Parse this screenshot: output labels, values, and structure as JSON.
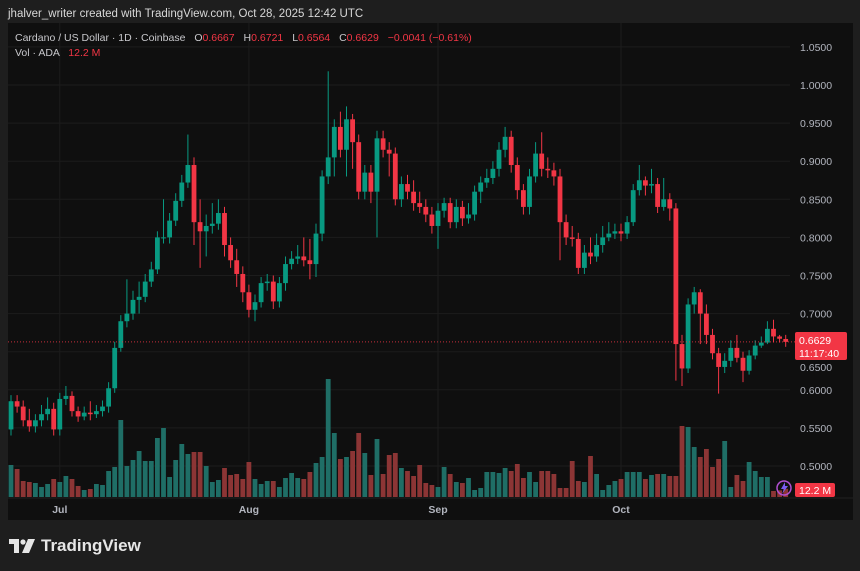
{
  "credit": "jhalver_writer created with TradingView.com, Oct 28, 2025 12:42 UTC",
  "legend": {
    "symbol": "Cardano / US Dollar · 1D · Coinbase",
    "o_label": "O",
    "o": "0.6667",
    "h_label": "H",
    "h": "0.6721",
    "l_label": "L",
    "l": "0.6564",
    "c_label": "C",
    "c": "0.6629",
    "change": "−0.0041 (−0.61%)",
    "vol_label": "Vol · ADA",
    "vol": "12.2 M"
  },
  "price_label": {
    "price": "0.6629",
    "countdown": "11:17:40"
  },
  "volume_label": "12.2 M",
  "footer": {
    "brand": "TradingView"
  },
  "colors": {
    "up": "#089981",
    "down": "#f23645",
    "vol_up": "#1f6e66",
    "vol_down": "#8c3535",
    "background": "#0f0f0f"
  },
  "chart_data": {
    "type": "candlestick",
    "symbol": "ADA/USD",
    "interval": "1D",
    "start_date": "2025-06-23",
    "x_tick_labels": [
      {
        "label": "Jul",
        "date": "2025-07-01"
      },
      {
        "label": "Aug",
        "date": "2025-08-01"
      },
      {
        "label": "Sep",
        "date": "2025-09-01"
      },
      {
        "label": "Oct",
        "date": "2025-10-01"
      }
    ],
    "y_ticks": [
      "1.0500",
      "1.0000",
      "0.9500",
      "0.9000",
      "0.8500",
      "0.8000",
      "0.7500",
      "0.7000",
      "0.6500",
      "0.6000",
      "0.5500",
      "0.5000"
    ],
    "ylim": [
      0.47,
      1.07
    ],
    "grid": true,
    "last_price_line": 0.6629,
    "candles_ohlc": [
      [
        0.548,
        0.593,
        0.54,
        0.585
      ],
      [
        0.585,
        0.593,
        0.57,
        0.578
      ],
      [
        0.578,
        0.586,
        0.552,
        0.56
      ],
      [
        0.56,
        0.575,
        0.545,
        0.552
      ],
      [
        0.552,
        0.568,
        0.544,
        0.56
      ],
      [
        0.56,
        0.58,
        0.552,
        0.568
      ],
      [
        0.568,
        0.59,
        0.56,
        0.575
      ],
      [
        0.575,
        0.583,
        0.54,
        0.548
      ],
      [
        0.548,
        0.596,
        0.54,
        0.588
      ],
      [
        0.588,
        0.605,
        0.58,
        0.592
      ],
      [
        0.592,
        0.598,
        0.565,
        0.572
      ],
      [
        0.572,
        0.578,
        0.558,
        0.565
      ],
      [
        0.565,
        0.578,
        0.56,
        0.57
      ],
      [
        0.57,
        0.585,
        0.56,
        0.568
      ],
      [
        0.568,
        0.58,
        0.563,
        0.572
      ],
      [
        0.572,
        0.586,
        0.565,
        0.578
      ],
      [
        0.578,
        0.61,
        0.57,
        0.602
      ],
      [
        0.602,
        0.663,
        0.596,
        0.655
      ],
      [
        0.655,
        0.698,
        0.65,
        0.69
      ],
      [
        0.69,
        0.745,
        0.682,
        0.7
      ],
      [
        0.7,
        0.73,
        0.692,
        0.718
      ],
      [
        0.718,
        0.742,
        0.7,
        0.722
      ],
      [
        0.722,
        0.752,
        0.715,
        0.742
      ],
      [
        0.742,
        0.768,
        0.735,
        0.758
      ],
      [
        0.758,
        0.808,
        0.752,
        0.8
      ],
      [
        0.8,
        0.85,
        0.792,
        0.8
      ],
      [
        0.8,
        0.832,
        0.792,
        0.822
      ],
      [
        0.822,
        0.858,
        0.815,
        0.848
      ],
      [
        0.848,
        0.882,
        0.84,
        0.872
      ],
      [
        0.872,
        0.935,
        0.865,
        0.895
      ],
      [
        0.895,
        0.905,
        0.79,
        0.82
      ],
      [
        0.82,
        0.85,
        0.76,
        0.808
      ],
      [
        0.808,
        0.83,
        0.775,
        0.815
      ],
      [
        0.815,
        0.845,
        0.805,
        0.818
      ],
      [
        0.818,
        0.85,
        0.81,
        0.832
      ],
      [
        0.832,
        0.84,
        0.775,
        0.79
      ],
      [
        0.79,
        0.8,
        0.76,
        0.77
      ],
      [
        0.77,
        0.785,
        0.735,
        0.752
      ],
      [
        0.752,
        0.762,
        0.715,
        0.728
      ],
      [
        0.728,
        0.738,
        0.695,
        0.705
      ],
      [
        0.705,
        0.725,
        0.69,
        0.715
      ],
      [
        0.715,
        0.748,
        0.708,
        0.74
      ],
      [
        0.74,
        0.752,
        0.73,
        0.742
      ],
      [
        0.742,
        0.75,
        0.706,
        0.716
      ],
      [
        0.716,
        0.748,
        0.708,
        0.74
      ],
      [
        0.74,
        0.775,
        0.73,
        0.765
      ],
      [
        0.765,
        0.782,
        0.758,
        0.772
      ],
      [
        0.772,
        0.79,
        0.765,
        0.775
      ],
      [
        0.775,
        0.8,
        0.762,
        0.77
      ],
      [
        0.77,
        0.798,
        0.745,
        0.765
      ],
      [
        0.765,
        0.818,
        0.748,
        0.805
      ],
      [
        0.805,
        0.888,
        0.795,
        0.88
      ],
      [
        0.88,
        1.018,
        0.87,
        0.905
      ],
      [
        0.905,
        0.955,
        0.88,
        0.945
      ],
      [
        0.945,
        0.965,
        0.905,
        0.915
      ],
      [
        0.915,
        0.972,
        0.88,
        0.955
      ],
      [
        0.955,
        0.962,
        0.89,
        0.925
      ],
      [
        0.925,
        0.935,
        0.85,
        0.86
      ],
      [
        0.86,
        0.895,
        0.85,
        0.885
      ],
      [
        0.885,
        0.895,
        0.845,
        0.86
      ],
      [
        0.86,
        0.94,
        0.8,
        0.93
      ],
      [
        0.93,
        0.94,
        0.905,
        0.915
      ],
      [
        0.915,
        0.925,
        0.88,
        0.91
      ],
      [
        0.91,
        0.918,
        0.842,
        0.85
      ],
      [
        0.85,
        0.88,
        0.84,
        0.87
      ],
      [
        0.87,
        0.882,
        0.85,
        0.86
      ],
      [
        0.86,
        0.875,
        0.835,
        0.845
      ],
      [
        0.845,
        0.86,
        0.832,
        0.84
      ],
      [
        0.84,
        0.85,
        0.82,
        0.83
      ],
      [
        0.83,
        0.84,
        0.805,
        0.815
      ],
      [
        0.815,
        0.845,
        0.785,
        0.835
      ],
      [
        0.835,
        0.852,
        0.826,
        0.845
      ],
      [
        0.845,
        0.852,
        0.812,
        0.82
      ],
      [
        0.82,
        0.85,
        0.812,
        0.84
      ],
      [
        0.84,
        0.848,
        0.815,
        0.825
      ],
      [
        0.825,
        0.845,
        0.818,
        0.83
      ],
      [
        0.83,
        0.868,
        0.822,
        0.86
      ],
      [
        0.86,
        0.88,
        0.845,
        0.872
      ],
      [
        0.872,
        0.89,
        0.865,
        0.878
      ],
      [
        0.878,
        0.9,
        0.87,
        0.89
      ],
      [
        0.89,
        0.925,
        0.88,
        0.915
      ],
      [
        0.915,
        0.945,
        0.905,
        0.932
      ],
      [
        0.932,
        0.94,
        0.885,
        0.895
      ],
      [
        0.895,
        0.905,
        0.85,
        0.862
      ],
      [
        0.862,
        0.87,
        0.83,
        0.84
      ],
      [
        0.84,
        0.89,
        0.83,
        0.88
      ],
      [
        0.88,
        0.925,
        0.872,
        0.91
      ],
      [
        0.91,
        0.938,
        0.88,
        0.89
      ],
      [
        0.89,
        0.905,
        0.878,
        0.888
      ],
      [
        0.888,
        0.898,
        0.868,
        0.88
      ],
      [
        0.88,
        0.89,
        0.77,
        0.82
      ],
      [
        0.82,
        0.83,
        0.79,
        0.8
      ],
      [
        0.8,
        0.815,
        0.788,
        0.798
      ],
      [
        0.798,
        0.806,
        0.752,
        0.76
      ],
      [
        0.76,
        0.79,
        0.752,
        0.78
      ],
      [
        0.78,
        0.8,
        0.765,
        0.775
      ],
      [
        0.775,
        0.805,
        0.768,
        0.79
      ],
      [
        0.79,
        0.815,
        0.78,
        0.8
      ],
      [
        0.8,
        0.82,
        0.795,
        0.805
      ],
      [
        0.805,
        0.818,
        0.798,
        0.808
      ],
      [
        0.808,
        0.818,
        0.795,
        0.805
      ],
      [
        0.805,
        0.828,
        0.798,
        0.82
      ],
      [
        0.82,
        0.87,
        0.815,
        0.862
      ],
      [
        0.862,
        0.895,
        0.855,
        0.875
      ],
      [
        0.875,
        0.88,
        0.855,
        0.868
      ],
      [
        0.868,
        0.89,
        0.858,
        0.87
      ],
      [
        0.87,
        0.878,
        0.832,
        0.84
      ],
      [
        0.84,
        0.878,
        0.835,
        0.85
      ],
      [
        0.85,
        0.858,
        0.822,
        0.838
      ],
      [
        0.838,
        0.845,
        0.612,
        0.66
      ],
      [
        0.66,
        0.672,
        0.605,
        0.628
      ],
      [
        0.628,
        0.72,
        0.622,
        0.712
      ],
      [
        0.712,
        0.735,
        0.7,
        0.728
      ],
      [
        0.728,
        0.732,
        0.66,
        0.7
      ],
      [
        0.7,
        0.712,
        0.66,
        0.672
      ],
      [
        0.672,
        0.68,
        0.64,
        0.648
      ],
      [
        0.648,
        0.655,
        0.595,
        0.63
      ],
      [
        0.63,
        0.648,
        0.622,
        0.638
      ],
      [
        0.638,
        0.665,
        0.63,
        0.655
      ],
      [
        0.655,
        0.672,
        0.636,
        0.642
      ],
      [
        0.642,
        0.65,
        0.61,
        0.625
      ],
      [
        0.625,
        0.652,
        0.62,
        0.645
      ],
      [
        0.645,
        0.665,
        0.64,
        0.658
      ],
      [
        0.658,
        0.67,
        0.655,
        0.662
      ],
      [
        0.662,
        0.69,
        0.66,
        0.68
      ],
      [
        0.68,
        0.692,
        0.662,
        0.67
      ],
      [
        0.67,
        0.672,
        0.662,
        0.667
      ],
      [
        0.6667,
        0.6721,
        0.6564,
        0.6629
      ]
    ],
    "volume_millions": [
      48,
      42,
      24,
      22.5,
      21,
      15,
      19.5,
      27,
      22.5,
      31.5,
      27,
      16.5,
      10.5,
      12,
      19.5,
      18,
      39,
      45,
      115.5,
      46.5,
      55.5,
      69,
      54,
      54,
      88.5,
      103.5,
      30,
      55.5,
      79.5,
      64.5,
      67.5,
      67.5,
      46.5,
      22.5,
      25.5,
      43.5,
      33,
      34.5,
      27,
      52.5,
      27,
      19.5,
      24,
      24,
      15,
      28.5,
      36,
      28.5,
      27,
      37.5,
      51,
      60,
      177,
      96,
      57,
      60,
      69,
      96,
      66,
      33,
      87,
      34.5,
      63,
      66,
      43.5,
      39,
      31.5,
      48,
      21,
      18,
      15,
      45,
      34.5,
      22.5,
      21,
      28.5,
      10.5,
      13.5,
      37.5,
      37.5,
      36,
      43.5,
      39,
      49.5,
      28.5,
      37.5,
      22.5,
      39,
      39,
      34.5,
      13.5,
      13.5,
      54,
      24,
      22.5,
      61.5,
      34.5,
      10.5,
      18,
      24,
      27,
      37.5,
      37.5,
      37.5,
      27,
      33,
      34.5,
      34.5,
      31.5,
      31.5,
      106.5,
      105,
      75,
      60,
      72,
      45,
      57,
      84,
      15,
      33,
      24,
      52.5,
      39,
      30,
      30,
      9,
      10,
      12.2
    ]
  }
}
